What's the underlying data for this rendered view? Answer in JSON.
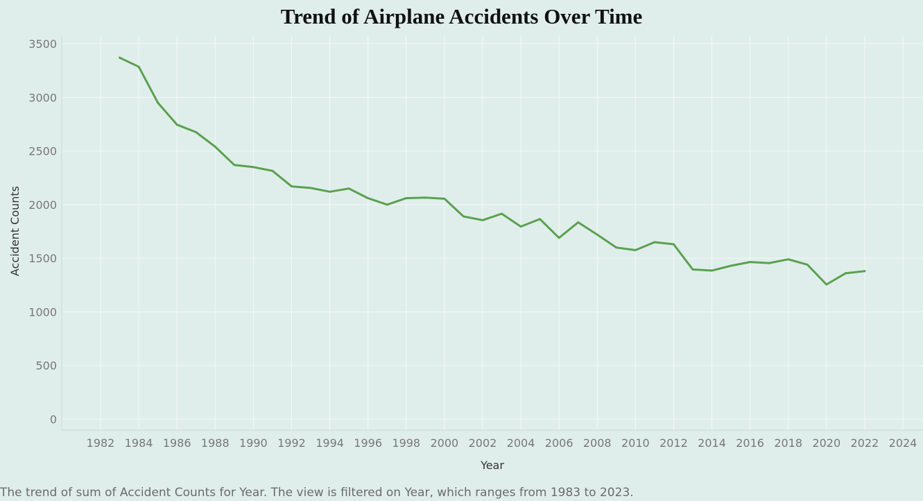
{
  "caption": "The trend of sum of Accident Counts for Year. The view is filtered on Year, which ranges from 1983 to 2023.",
  "chart_data": {
    "type": "line",
    "title": "Trend of Airplane Accidents Over Time",
    "xlabel": "Year",
    "ylabel": "Accident Counts",
    "xlim": [
      1980,
      2024.5
    ],
    "ylim": [
      0,
      3500
    ],
    "xticks": [
      1982,
      1984,
      1986,
      1988,
      1990,
      1992,
      1994,
      1996,
      1998,
      2000,
      2002,
      2004,
      2006,
      2008,
      2010,
      2012,
      2014,
      2016,
      2018,
      2020,
      2022,
      2024
    ],
    "yticks": [
      0,
      500,
      1000,
      1500,
      2000,
      2500,
      3000,
      3500
    ],
    "grid": true,
    "line_color": "#59a14f",
    "series": [
      {
        "x": [
          1983,
          1984,
          1985,
          1986,
          1987,
          1988,
          1989,
          1990,
          1991,
          1992,
          1993,
          1994,
          1995,
          1996,
          1997,
          1998,
          1999,
          2000,
          2001,
          2002,
          2003,
          2004,
          2005,
          2006,
          2007,
          2008,
          2009,
          2010,
          2011,
          2012,
          2013,
          2014,
          2015,
          2016,
          2017,
          2018,
          2019,
          2020,
          2021,
          2022
        ],
        "values": [
          3370,
          3285,
          2950,
          2745,
          2675,
          2540,
          2370,
          2350,
          2315,
          2170,
          2155,
          2120,
          2150,
          2060,
          2000,
          2060,
          2065,
          2055,
          1890,
          1855,
          1915,
          1795,
          1865,
          1690,
          1835,
          1720,
          1600,
          1575,
          1650,
          1630,
          1395,
          1385,
          1430,
          1465,
          1455,
          1490,
          1440,
          1255,
          1360,
          1380
        ]
      }
    ]
  }
}
